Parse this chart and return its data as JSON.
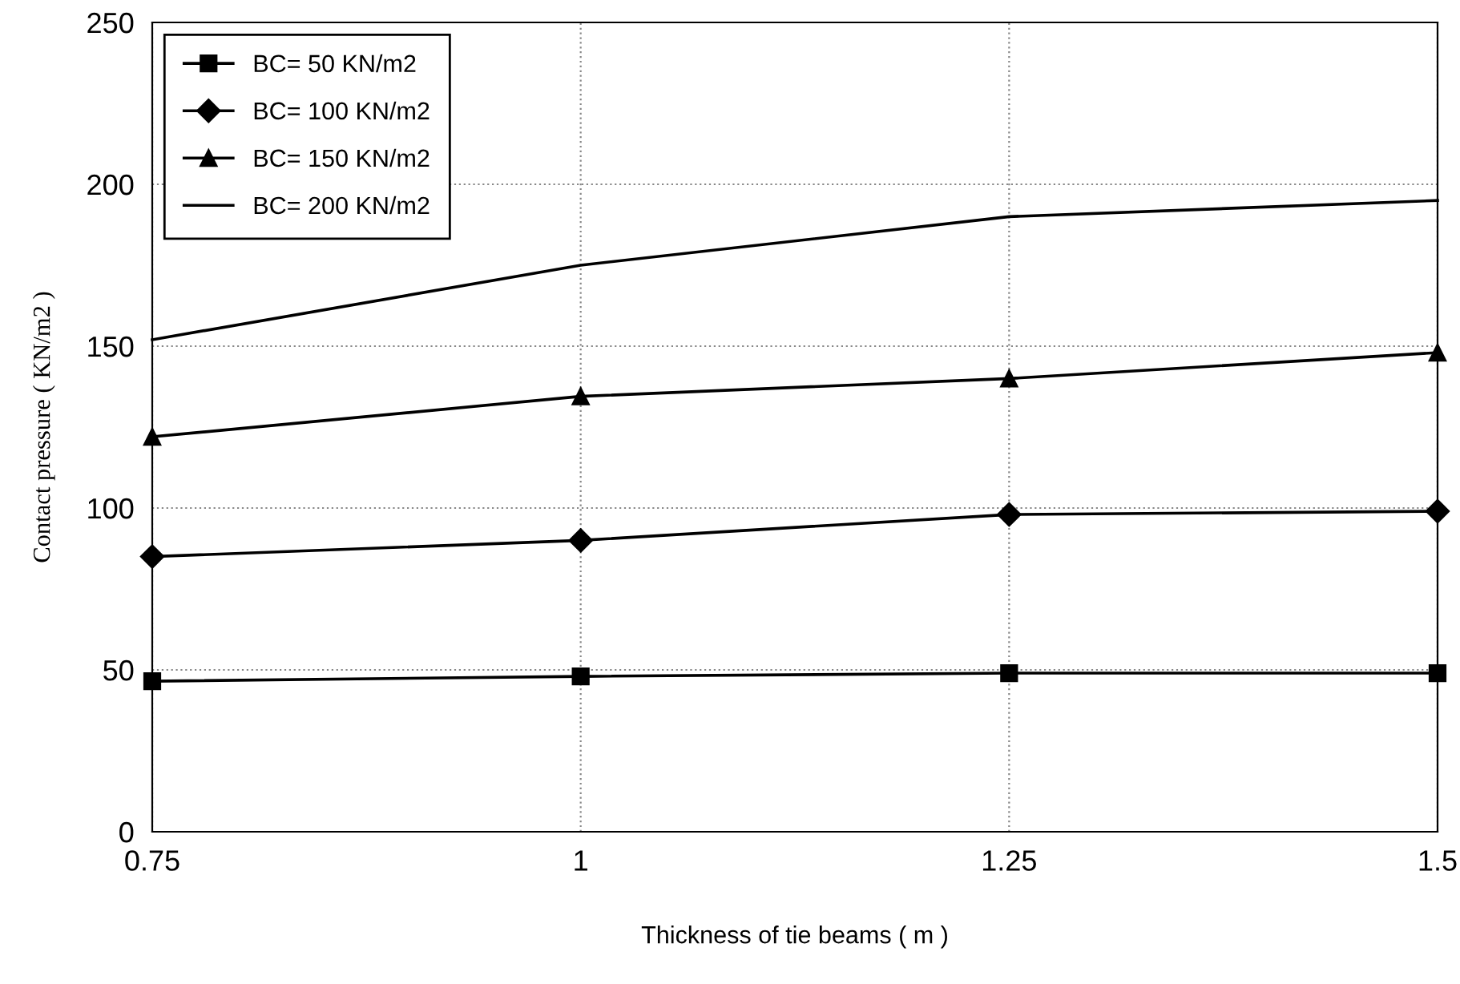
{
  "chart_data": {
    "type": "line",
    "xlabel": "Thickness of tie beams ( m )",
    "ylabel": "Contact pressure ( KN/m2 )",
    "x": [
      0.75,
      1,
      1.25,
      1.5
    ],
    "series": [
      {
        "name": "BC= 50 KN/m2",
        "color": "#000000",
        "marker": "square",
        "values": [
          46.5,
          48,
          49,
          49
        ]
      },
      {
        "name": "BC= 100 KN/m2",
        "color": "#000000",
        "marker": "diamond",
        "values": [
          85,
          90,
          98,
          99
        ]
      },
      {
        "name": "BC= 150 KN/m2",
        "color": "#000000",
        "marker": "triangle",
        "values": [
          122,
          134.5,
          140,
          148
        ]
      },
      {
        "name": "BC= 200 KN/m2",
        "color": "#000000",
        "marker": "none",
        "values": [
          152,
          175,
          190,
          195
        ]
      }
    ],
    "xlim": [
      0.75,
      1.5
    ],
    "xticks": [
      0.75,
      1,
      1.25,
      1.5
    ],
    "ylim": [
      0,
      250
    ],
    "yticks": [
      0,
      50,
      100,
      150,
      200,
      250
    ],
    "grid": true,
    "legend": "top left",
    "line_style": "solid"
  }
}
